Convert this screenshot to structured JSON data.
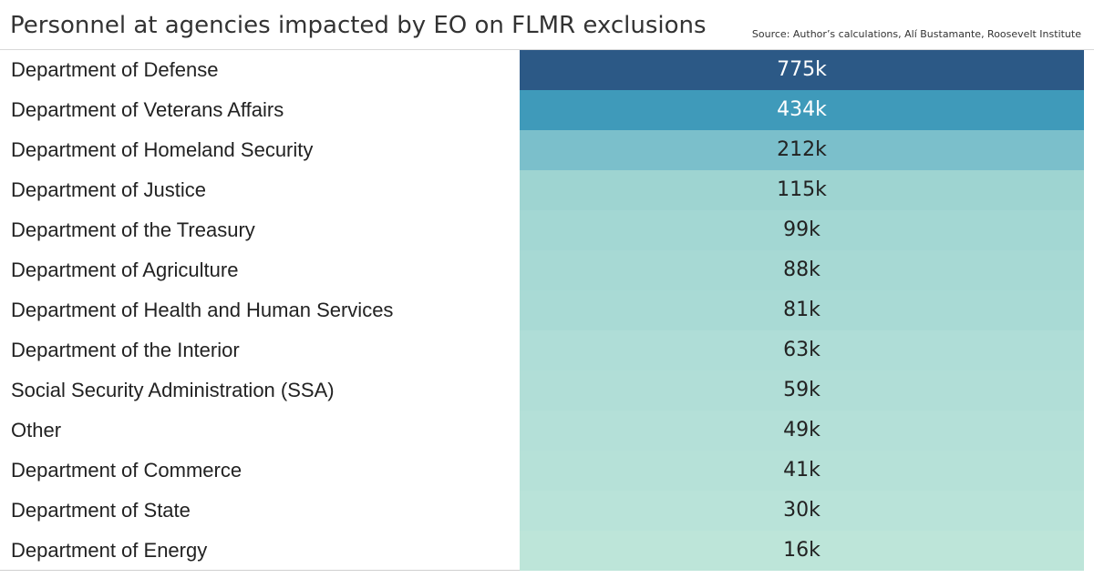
{
  "header": {
    "title": "Personnel at agencies impacted by EO on FLMR exclusions",
    "source": "Source: Author’s calculations, Alí Bustamante, Roosevelt Institute"
  },
  "chart_data": {
    "type": "table",
    "title": "Personnel at agencies impacted by EO on FLMR exclusions",
    "source": "Source: Author’s calculations, Alí Bustamante, Roosevelt Institute",
    "categories": [
      "Department of Defense",
      "Department of Veterans Affairs",
      "Department of Homeland Security",
      "Department of Justice",
      "Department of the Treasury",
      "Department of Agriculture",
      "Department of Health and Human Services",
      "Department of the Interior",
      "Social Security Administration (SSA)",
      "Other",
      "Department of Commerce",
      "Department of State",
      "Department of Energy"
    ],
    "values": [
      775,
      434,
      212,
      115,
      99,
      88,
      81,
      63,
      59,
      49,
      41,
      30,
      16
    ],
    "value_labels": [
      "775k",
      "434k",
      "212k",
      "115k",
      "99k",
      "88k",
      "81k",
      "63k",
      "59k",
      "49k",
      "41k",
      "30k",
      "16k"
    ],
    "unit": "thousand personnel",
    "color_scale": {
      "low": "#bde5d9",
      "stops": [
        {
          "value": 16,
          "color": "#bde5d9"
        },
        {
          "value": 49,
          "color": "#b4e0d8"
        },
        {
          "value": 115,
          "color": "#9ed4d1"
        },
        {
          "value": 212,
          "color": "#7bbfcb"
        },
        {
          "value": 434,
          "color": "#3f9aba"
        },
        {
          "value": 775,
          "color": "#2c5986"
        }
      ]
    }
  }
}
